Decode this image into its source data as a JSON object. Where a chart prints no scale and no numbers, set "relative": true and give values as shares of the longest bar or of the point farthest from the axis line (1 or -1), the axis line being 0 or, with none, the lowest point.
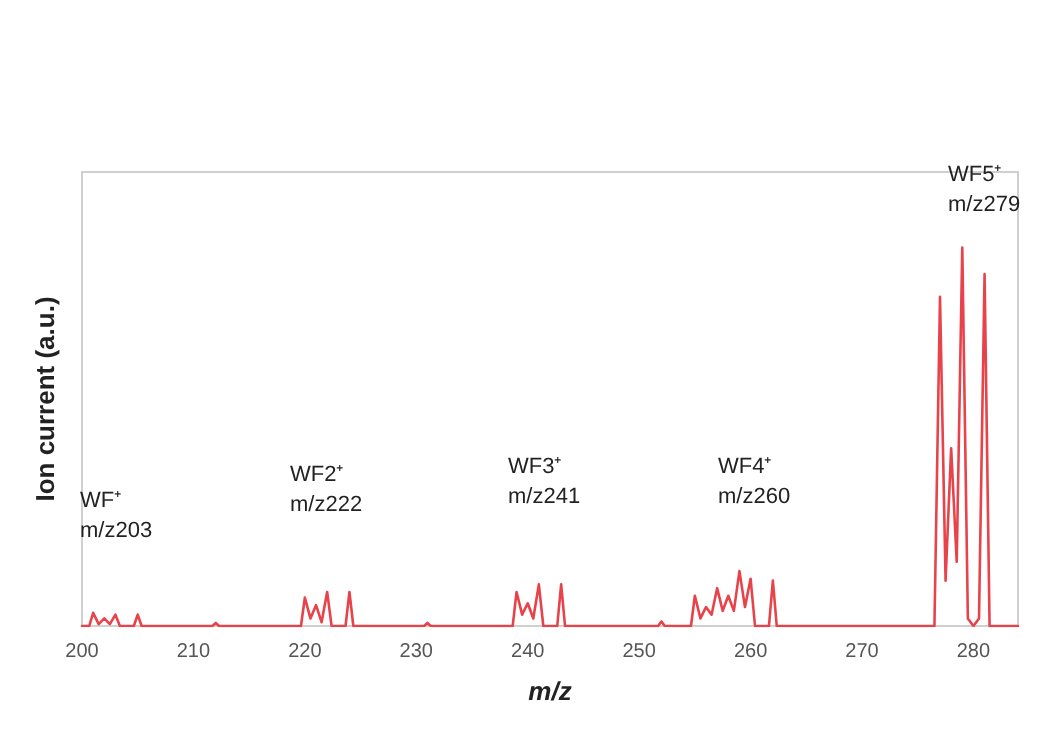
{
  "chart_data": {
    "type": "line",
    "relative": true,
    "xlabel": "m/z",
    "ylabel": "Ion current (a.u.)",
    "xlim": [
      200,
      284
    ],
    "xticks": [
      200,
      210,
      220,
      230,
      240,
      250,
      260,
      270,
      280
    ],
    "grid": false,
    "marker": "none",
    "line_style": "solid",
    "series": [
      {
        "color": "#e8434a",
        "x": [
          200,
          200.65,
          201,
          201.5,
          202,
          202.5,
          203,
          203.4,
          204.65,
          205,
          205.35,
          211.7,
          212,
          212.3,
          219.65,
          220,
          220.5,
          221,
          221.5,
          222,
          222.4,
          223.65,
          224,
          224.35,
          230.7,
          231,
          231.3,
          238.65,
          239,
          239.5,
          240,
          240.5,
          241,
          241.4,
          242.65,
          243,
          243.35,
          251.7,
          252,
          252.3,
          254.65,
          255,
          255.5,
          256,
          256.5,
          257,
          257.5,
          258,
          258.5,
          259,
          259.5,
          260,
          260.4,
          261.65,
          262,
          262.35,
          276.5,
          277,
          277.5,
          278,
          278.5,
          279,
          279.5,
          280,
          280.5,
          281,
          281.45,
          284
        ],
        "values": [
          0,
          0,
          0.035,
          0.005,
          0.02,
          0.005,
          0.03,
          0,
          0,
          0.03,
          0,
          0,
          0.008,
          0,
          0,
          0.075,
          0.02,
          0.055,
          0.01,
          0.09,
          0,
          0,
          0.09,
          0,
          0,
          0.008,
          0,
          0,
          0.09,
          0.03,
          0.06,
          0.02,
          0.11,
          0,
          0,
          0.11,
          0,
          0,
          0.012,
          0,
          0,
          0.08,
          0.02,
          0.05,
          0.03,
          0.1,
          0.04,
          0.08,
          0.04,
          0.145,
          0.05,
          0.125,
          0,
          0,
          0.12,
          0,
          0,
          0.87,
          0.12,
          0.47,
          0.17,
          1,
          0.02,
          0,
          0.02,
          0.93,
          0,
          0
        ]
      }
    ],
    "annotations": [
      "WF⁺\nm/z203",
      "WF2⁺\nm/z222",
      "WF3⁺\nm/z241",
      "WF4⁺\nm/z260",
      "WF5⁺\nm/z279"
    ]
  }
}
